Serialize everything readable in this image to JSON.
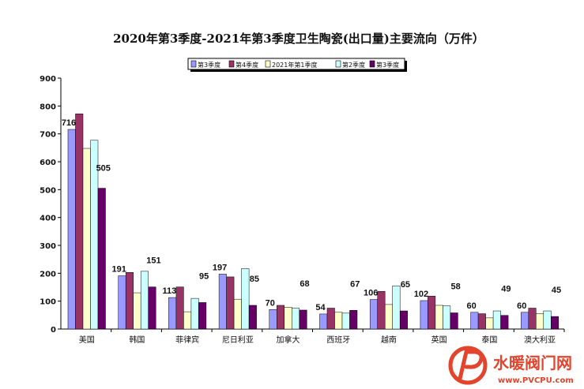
{
  "chart_data": {
    "type": "bar",
    "title": "2020年第3季度-2021年第3季度卫生陶瓷(出口量)主要流向（万件）",
    "xlabel": "",
    "ylabel": "",
    "ylim": [
      0,
      900
    ],
    "yticks": [
      0,
      100,
      200,
      300,
      400,
      500,
      600,
      700,
      800,
      900
    ],
    "grid": false,
    "legend_position": "top",
    "categories": [
      "美国",
      "韩国",
      "菲律宾",
      "尼日利亚",
      "加拿大",
      "西班牙",
      "越南",
      "英国",
      "泰国",
      "澳大利亚"
    ],
    "series": [
      {
        "name": "第3季度",
        "color": "#9999ff",
        "values": [
          716,
          191,
          113,
          197,
          70,
          54,
          106,
          102,
          60,
          60
        ]
      },
      {
        "name": "第4季度",
        "color": "#993366",
        "values": [
          772,
          203,
          151,
          187,
          85,
          75,
          135,
          118,
          55,
          75
        ]
      },
      {
        "name": "2021年第1季度",
        "color": "#ffffcc",
        "values": [
          648,
          130,
          62,
          107,
          78,
          60,
          88,
          85,
          40,
          55
        ]
      },
      {
        "name": "第2季度",
        "color": "#ccffff",
        "values": [
          677,
          207,
          110,
          217,
          75,
          57,
          155,
          83,
          65,
          65
        ]
      },
      {
        "name": "第3季度",
        "color": "#660066",
        "values": [
          505,
          151,
          95,
          85,
          68,
          67,
          65,
          58,
          49,
          45
        ]
      }
    ],
    "data_labels": {
      "series_0": [
        "716",
        "191",
        "113",
        "197",
        "70",
        "54",
        "106",
        "102",
        "60",
        "60"
      ],
      "series_4": [
        "505",
        "151",
        "95",
        "85",
        "68",
        "67",
        "65",
        "58",
        "49",
        "45"
      ]
    }
  },
  "watermark": {
    "brand_text": "水暖阀门网",
    "url_text": "www.PVCPU.com",
    "logo_color": "#e2442d",
    "text_color": "#e2442d"
  }
}
